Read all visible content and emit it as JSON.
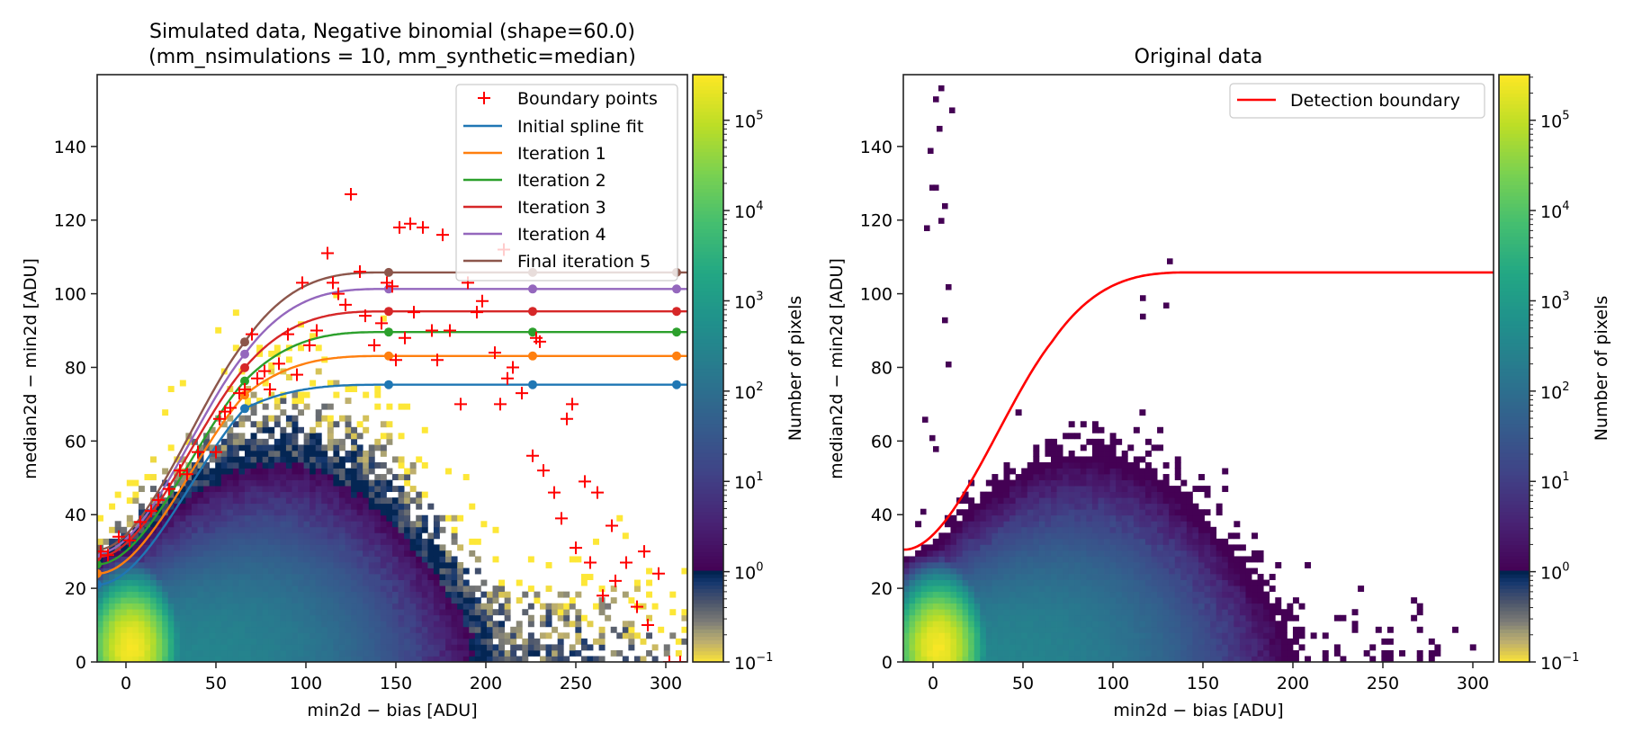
{
  "chart_data": [
    {
      "type": "heatmap",
      "panel": "left",
      "title_line1": "Simulated data, Negative binomial (shape=60.0)",
      "title_line2": "(mm_nsimulations = 10, mm_synthetic=median)",
      "xlabel": "min2d − bias  [ADU]",
      "ylabel": "median2d − min2d  [ADU]",
      "xlim": [
        -16,
        312
      ],
      "ylim": [
        0,
        159.5
      ],
      "xticks": [
        0,
        50,
        100,
        150,
        200,
        250,
        300
      ],
      "yticks": [
        0,
        20,
        40,
        60,
        80,
        100,
        120,
        140
      ],
      "grid": false,
      "legend_position": "top-right",
      "colorbar": {
        "label": "Number of pixels",
        "scale": "log",
        "range": [
          0.1,
          320000
        ],
        "ticks": [
          {
            "base": "10",
            "exp": "−1",
            "value": 0.1
          },
          {
            "base": "10",
            "exp": "0",
            "value": 1
          },
          {
            "base": "10",
            "exp": "1",
            "value": 10
          },
          {
            "base": "10",
            "exp": "2",
            "value": 100
          },
          {
            "base": "10",
            "exp": "3",
            "value": 1000
          },
          {
            "base": "10",
            "exp": "4",
            "value": 10000
          },
          {
            "base": "10",
            "exp": "5",
            "value": 100000
          }
        ],
        "colormap_below_1": "cividis_r",
        "colormap_above_1": "viridis"
      },
      "boundary_points": {
        "name": "Boundary points",
        "color": "#ff0000",
        "marker": "+",
        "points": [
          [
            -14,
            30
          ],
          [
            -10,
            29
          ],
          [
            -4,
            34
          ],
          [
            2,
            33
          ],
          [
            8,
            38
          ],
          [
            14,
            41
          ],
          [
            18,
            44
          ],
          [
            24,
            47
          ],
          [
            30,
            52
          ],
          [
            34,
            51
          ],
          [
            40,
            57
          ],
          [
            50,
            57
          ],
          [
            52,
            66
          ],
          [
            55,
            68
          ],
          [
            58,
            69
          ],
          [
            63,
            73
          ],
          [
            66,
            74
          ],
          [
            70,
            89
          ],
          [
            73,
            77
          ],
          [
            77,
            79
          ],
          [
            80,
            74
          ],
          [
            85,
            81
          ],
          [
            90,
            89
          ],
          [
            95,
            78
          ],
          [
            98,
            103
          ],
          [
            102,
            86
          ],
          [
            106,
            90
          ],
          [
            112,
            111
          ],
          [
            115,
            103
          ],
          [
            118,
            100
          ],
          [
            122,
            97
          ],
          [
            125,
            127
          ],
          [
            130,
            106
          ],
          [
            133,
            94
          ],
          [
            138,
            86
          ],
          [
            142,
            92
          ],
          [
            145,
            103
          ],
          [
            148,
            102
          ],
          [
            150,
            82
          ],
          [
            152,
            118
          ],
          [
            155,
            88
          ],
          [
            158,
            119
          ],
          [
            160,
            95
          ],
          [
            165,
            118
          ],
          [
            170,
            90
          ],
          [
            173,
            82
          ],
          [
            176,
            116
          ],
          [
            180,
            90
          ],
          [
            186,
            70
          ],
          [
            190,
            103
          ],
          [
            195,
            95
          ],
          [
            198,
            98
          ],
          [
            205,
            84
          ],
          [
            208,
            70
          ],
          [
            210,
            112
          ],
          [
            212,
            77
          ],
          [
            215,
            80
          ],
          [
            220,
            73
          ],
          [
            226,
            56
          ],
          [
            228,
            88
          ],
          [
            230,
            87
          ],
          [
            232,
            52
          ],
          [
            238,
            46
          ],
          [
            242,
            39
          ],
          [
            245,
            66
          ],
          [
            248,
            70
          ],
          [
            250,
            31
          ],
          [
            255,
            49
          ],
          [
            258,
            27
          ],
          [
            262,
            46
          ],
          [
            265,
            18
          ],
          [
            270,
            37
          ],
          [
            272,
            22
          ],
          [
            278,
            27
          ],
          [
            284,
            15
          ],
          [
            288,
            30
          ],
          [
            290,
            10
          ],
          [
            296,
            24
          ],
          [
            302,
            0
          ],
          [
            308,
            0
          ]
        ]
      },
      "series": [
        {
          "name": "Initial spline fit",
          "color": "#1f77b4",
          "knots_x": [
            -16,
            66,
            146,
            226,
            306
          ],
          "knots_y": [
            21.0,
            68.8,
            75.3,
            75.3,
            75.3
          ]
        },
        {
          "name": "Iteration 1",
          "color": "#ff7f0e",
          "knots_x": [
            -16,
            66,
            146,
            226,
            306
          ],
          "knots_y": [
            24.0,
            72.5,
            83.1,
            83.1,
            83.1
          ]
        },
        {
          "name": "Iteration 2",
          "color": "#2ca02c",
          "knots_x": [
            -16,
            66,
            146,
            226,
            306
          ],
          "knots_y": [
            26.5,
            76.3,
            89.6,
            89.6,
            89.6
          ]
        },
        {
          "name": "Iteration 3",
          "color": "#d62728",
          "knots_x": [
            -16,
            66,
            146,
            226,
            306
          ],
          "knots_y": [
            28.5,
            79.9,
            95.2,
            95.2,
            95.2
          ]
        },
        {
          "name": "Iteration 4",
          "color": "#9467bd",
          "knots_x": [
            -16,
            66,
            146,
            226,
            306
          ],
          "knots_y": [
            29.5,
            83.6,
            101.3,
            101.3,
            101.3
          ]
        },
        {
          "name": "Final iteration 5",
          "color": "#8c564b",
          "knots_x": [
            -16,
            66,
            146,
            226,
            306
          ],
          "knots_y": [
            30.5,
            86.9,
            105.8,
            105.8,
            105.8
          ]
        }
      ],
      "histogram": {
        "bins_x": 100,
        "bins_y": 100,
        "peak_location": [
          3,
          4
        ],
        "peak_count": 300000,
        "count_1_contour": [
          [
            0,
            25
          ],
          [
            50,
            48
          ],
          [
            110,
            52
          ],
          [
            180,
            45
          ],
          [
            205,
            0
          ]
        ],
        "sub_unity_extent": [
          [
            0,
            35
          ],
          [
            60,
            75
          ],
          [
            150,
            90
          ],
          [
            230,
            40
          ],
          [
            300,
            0
          ]
        ]
      }
    },
    {
      "type": "heatmap",
      "panel": "right",
      "title": "Original data",
      "xlabel": "min2d − bias  [ADU]",
      "ylabel": "median2d − min2d  [ADU]",
      "xlim": [
        -16.5,
        311.5
      ],
      "ylim": [
        0,
        159.5
      ],
      "xticks": [
        0,
        50,
        100,
        150,
        200,
        250,
        300
      ],
      "yticks": [
        0,
        20,
        40,
        60,
        80,
        100,
        120,
        140
      ],
      "grid": false,
      "legend_position": "top-right",
      "colorbar": {
        "label": "Number of pixels",
        "scale": "log",
        "range": [
          0.1,
          320000
        ],
        "ticks": [
          {
            "base": "10",
            "exp": "−1",
            "value": 0.1
          },
          {
            "base": "10",
            "exp": "0",
            "value": 1
          },
          {
            "base": "10",
            "exp": "1",
            "value": 10
          },
          {
            "base": "10",
            "exp": "2",
            "value": 100
          },
          {
            "base": "10",
            "exp": "3",
            "value": 1000
          },
          {
            "base": "10",
            "exp": "4",
            "value": 10000
          },
          {
            "base": "10",
            "exp": "5",
            "value": 100000
          }
        ]
      },
      "series": [
        {
          "name": "Detection boundary",
          "color": "#ff0000",
          "knots_x": [
            -16,
            66,
            146,
            226,
            306
          ],
          "knots_y": [
            30.5,
            86.9,
            105.8,
            105.8,
            105.8
          ]
        }
      ],
      "outlier_bins": [
        [
          0,
          152
        ],
        [
          3,
          155
        ],
        [
          9,
          149
        ],
        [
          2,
          144
        ],
        [
          -3,
          138
        ],
        [
          -2,
          128
        ],
        [
          0,
          128
        ],
        [
          5,
          123
        ],
        [
          -5,
          117
        ],
        [
          3,
          119
        ],
        [
          7,
          101
        ],
        [
          5,
          92
        ],
        [
          7,
          80
        ],
        [
          130,
          108
        ],
        [
          115,
          98
        ],
        [
          128,
          96
        ],
        [
          115,
          93
        ],
        [
          -7,
          40
        ],
        [
          -2,
          60
        ],
        [
          -6,
          65
        ],
        [
          0,
          57
        ]
      ],
      "histogram": {
        "bins_x": 100,
        "bins_y": 100,
        "peak_location": [
          3,
          4
        ],
        "peak_count": 300000,
        "count_1_extent": [
          [
            0,
            40
          ],
          [
            50,
            60
          ],
          [
            130,
            78
          ],
          [
            200,
            60
          ],
          [
            215,
            40
          ],
          [
            260,
            5
          ]
        ]
      }
    }
  ],
  "legend_left": {
    "items": [
      "Boundary points",
      "Initial spline fit",
      "Iteration 1",
      "Iteration 2",
      "Iteration 3",
      "Iteration 4",
      "Final iteration 5"
    ]
  },
  "legend_right": {
    "items": [
      "Detection boundary"
    ]
  }
}
